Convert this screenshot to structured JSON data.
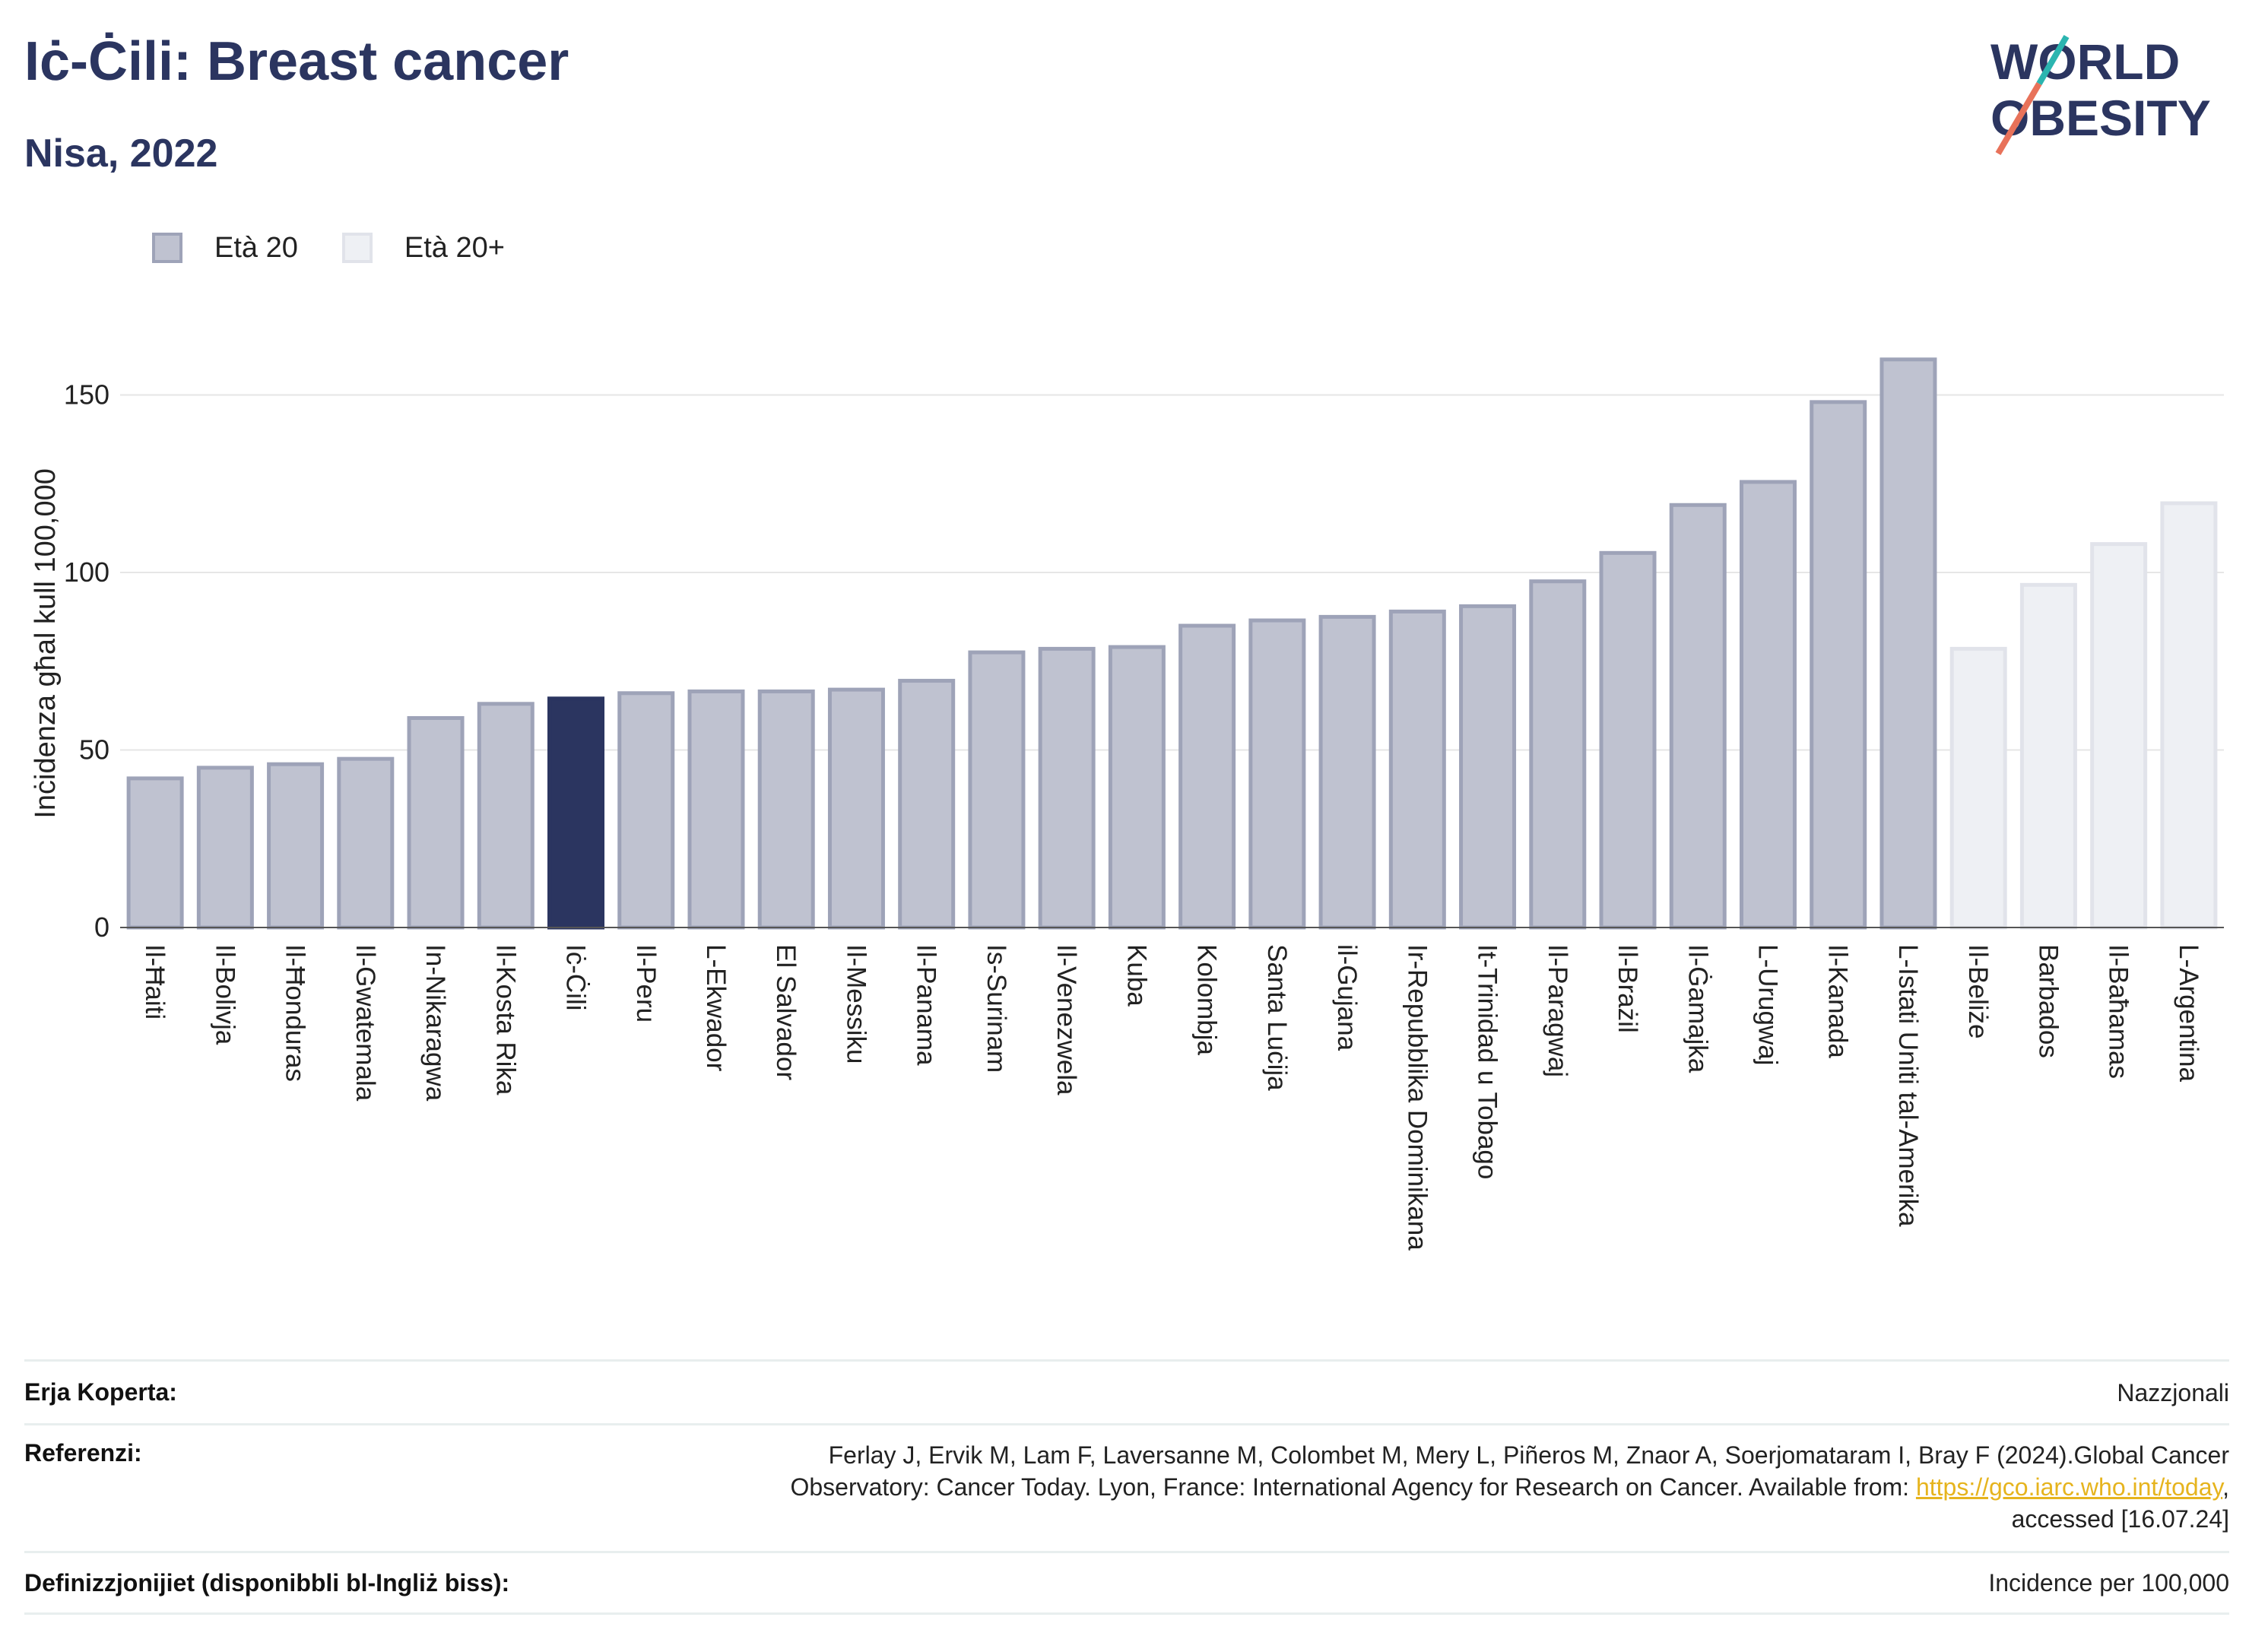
{
  "header": {
    "title": "Iċ-Ċili: Breast cancer",
    "subtitle": "Nisa, 2022"
  },
  "logo": {
    "line1": "WORLD",
    "line2": "OBESITY",
    "colors": [
      "#2b3560",
      "#e8725a",
      "#2bb5b0"
    ]
  },
  "colors": {
    "age20": "#bfc2d0",
    "age20_border": "#9ea3b8",
    "age20plus": "#eef0f4",
    "age20plus_border": "#e1e3ea",
    "highlight": "#2b3560",
    "grid": "#e6e6e6"
  },
  "chart_data": {
    "type": "bar",
    "ylabel": "Inċidenza għal kull 100,000",
    "ylim": [
      0,
      170
    ],
    "yticks": [
      0,
      50,
      100,
      150
    ],
    "grid": true,
    "legend_position": "top-left",
    "legend": [
      {
        "name": "Età 20",
        "color": "#bfc2d0"
      },
      {
        "name": "Età 20+",
        "color": "#eef0f4"
      }
    ],
    "highlight": "Iċ-Ċili",
    "categories": [
      "Il-Ħaiti",
      "Il-Bolivja",
      "Il-Ħonduras",
      "Il-Gwatemala",
      "In-Nikaragwa",
      "Il-Kosta Rika",
      "Iċ-Ċili",
      "Il-Peru",
      "L-Ekwador",
      "El Salvador",
      "Il-Messiku",
      "Il-Panama",
      "Is-Surinam",
      "Il-Venezwela",
      "Kuba",
      "Kolombja",
      "Santa Luċija",
      "il-Gujana",
      "Ir-Repubblika Dominikana",
      "It-Trinidad u Tobago",
      "Il-Paragwaj",
      "Il-Brażil",
      "Il-Ġamajka",
      "L-Urugwaj",
      "Il-Kanada",
      "L-Istati Uniti tal-Amerika",
      "Il-Beliże",
      "Barbados",
      "Il-Baħamas",
      "L-Argentina"
    ],
    "values": [
      42,
      45,
      46,
      47.5,
      59,
      63,
      64.5,
      66,
      66.5,
      66.5,
      67,
      69.5,
      77.5,
      78.5,
      79,
      85,
      86.5,
      87.5,
      89,
      90.5,
      97.5,
      105.5,
      119,
      125.5,
      148,
      160,
      78.5,
      96.5,
      108,
      119.5
    ],
    "series_group": [
      "Età 20",
      "Età 20",
      "Età 20",
      "Età 20",
      "Età 20",
      "Età 20",
      "Età 20",
      "Età 20",
      "Età 20",
      "Età 20",
      "Età 20",
      "Età 20",
      "Età 20",
      "Età 20",
      "Età 20",
      "Età 20",
      "Età 20",
      "Età 20",
      "Età 20",
      "Età 20",
      "Età 20",
      "Età 20",
      "Età 20",
      "Età 20",
      "Età 20",
      "Età 20",
      "Età 20+",
      "Età 20+",
      "Età 20+",
      "Età 20+"
    ]
  },
  "meta": {
    "coverage_label": "Erja Koperta:",
    "coverage_value": "Nazzjonali",
    "references_label": "Referenzi:",
    "references_line1": "Ferlay J, Ervik M, Lam F, Laversanne M, Colombet M, Mery L, Piñeros M, Znaor A, Soerjomataram I, Bray F (2024).Global Cancer",
    "references_line2_pre": "Observatory: Cancer Today. Lyon, France: International Agency for Research on Cancer. Available from: ",
    "references_link": "https://gco.iarc.who.int/today",
    "references_line2_post": ",",
    "references_line3": "accessed [16.07.24]",
    "definitions_label": "Definizzjonijiet (disponibbli bl-Ingliż biss):",
    "definitions_value": "Incidence per 100,000"
  }
}
